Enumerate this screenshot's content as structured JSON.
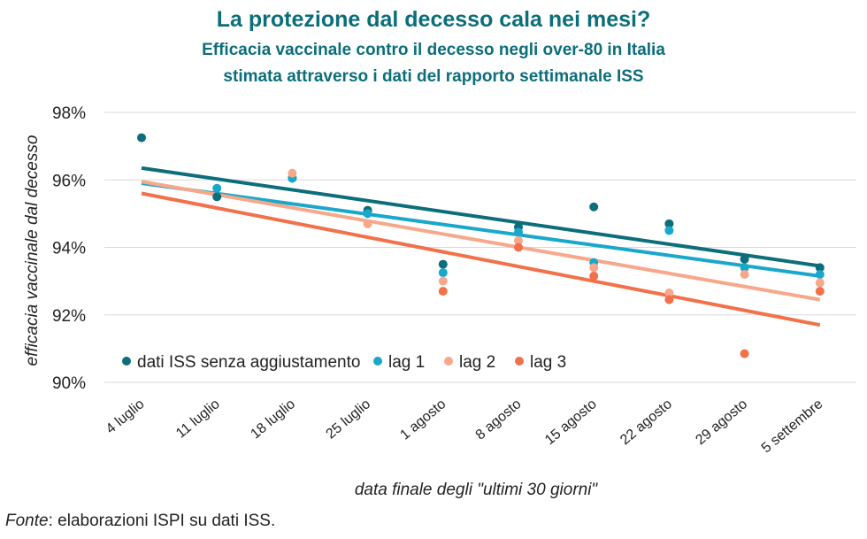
{
  "title": "La protezione dal decesso cala nei mesi?",
  "subtitle_line1": "Efficacia vaccinale contro il decesso negli over-80 in Italia",
  "subtitle_line2": "stimata attraverso i dati del rapporto settimanale ISS",
  "source_label": "Fonte",
  "source_text": ": elaborazioni ISPI su dati ISS.",
  "chart_data": {
    "type": "scatter",
    "xlabel": "data finale degli \"ultimi 30 giorni\"",
    "ylabel": "efficacia vaccinale dal decesso",
    "categories": [
      "4 luglio",
      "11 luglio",
      "18 luglio",
      "25 luglio",
      "1 agosto",
      "8 agosto",
      "15 agosto",
      "22 agosto",
      "29 agosto",
      "5 settembre"
    ],
    "ylim": [
      90,
      98
    ],
    "yticks": [
      90,
      92,
      94,
      96,
      98
    ],
    "ytick_format": "%",
    "grid": "horizontal",
    "legend_position": "bottom-left",
    "trendlines": "linear",
    "series": [
      {
        "name": "dati ISS senza aggiustamento",
        "color": "#0b6e7a",
        "values": [
          97.25,
          95.5,
          96.05,
          95.1,
          93.5,
          94.6,
          95.2,
          94.7,
          93.65,
          93.4
        ]
      },
      {
        "name": "lag 1",
        "color": "#19a7cc",
        "values": [
          null,
          95.75,
          96.05,
          95.0,
          93.25,
          94.45,
          93.55,
          94.5,
          93.4,
          93.2
        ]
      },
      {
        "name": "lag 2",
        "color": "#f7a88b",
        "values": [
          null,
          null,
          96.2,
          94.7,
          93.0,
          94.2,
          93.4,
          92.65,
          93.2,
          92.95
        ]
      },
      {
        "name": "lag 3",
        "color": "#f2714a",
        "values": [
          null,
          null,
          null,
          null,
          92.7,
          94.0,
          93.15,
          92.45,
          90.85,
          92.7
        ]
      }
    ],
    "trend_values": [
      {
        "start": 96.35,
        "end": 93.45
      },
      {
        "start": 95.9,
        "end": 93.15
      },
      {
        "start": 95.95,
        "end": 92.45
      },
      {
        "start": 95.6,
        "end": 91.7
      }
    ]
  }
}
